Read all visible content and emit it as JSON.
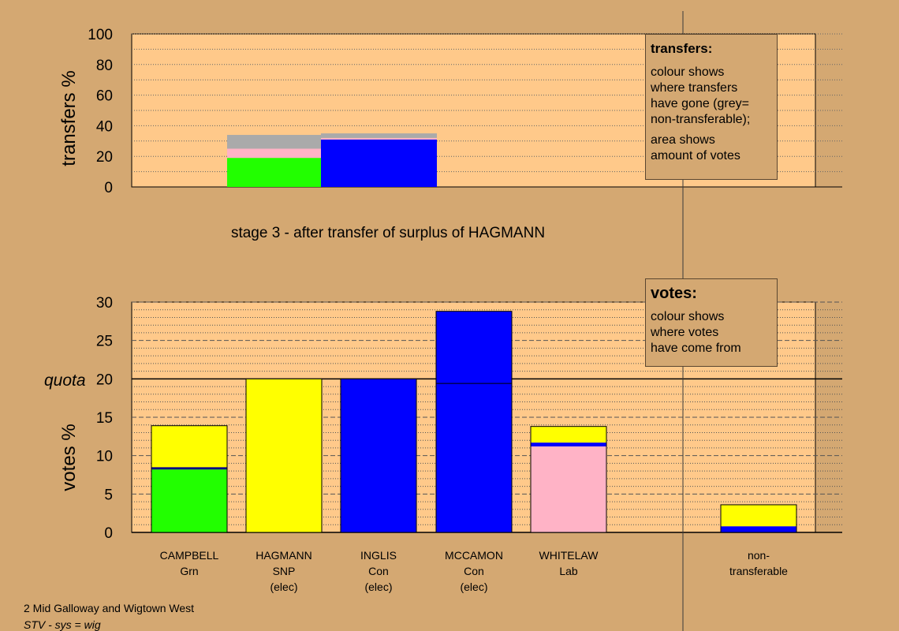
{
  "chart_data": [
    {
      "type": "bar",
      "ylabel": "transfers %",
      "ylim": [
        0,
        100
      ],
      "yticks": [
        0,
        20,
        40,
        60,
        80,
        100
      ],
      "grid": "dotted",
      "bars": [
        {
          "x_start": 1,
          "x_end": 2,
          "segments": [
            {
              "party": "Grn",
              "color": "#22ff00",
              "value": 19
            },
            {
              "party": "Lab",
              "color": "#ffb3c6",
              "value": 6
            },
            {
              "party": "non-transferable",
              "color": "#aaaaaa",
              "value": 9
            }
          ]
        },
        {
          "x_start": 2,
          "x_end": 3.2,
          "segments": [
            {
              "party": "Con",
              "color": "#0000ff",
              "value": 31
            },
            {
              "party": "Lab",
              "color": "#ffb3c6",
              "value": 1
            },
            {
              "party": "non-transferable",
              "color": "#aaaaaa",
              "value": 3
            }
          ]
        }
      ]
    },
    {
      "type": "bar",
      "ylabel": "votes %",
      "ylim": [
        0,
        30
      ],
      "yticks": [
        0,
        5,
        10,
        15,
        20,
        25,
        30
      ],
      "quota": 20,
      "quota_label": "quota",
      "grid": "dashed",
      "categories": [
        {
          "name": "CAMPBELL",
          "party": "Grn",
          "status": "",
          "segments": [
            {
              "color": "#22ff00",
              "value": 8.2
            },
            {
              "color": "#000080",
              "value": 0.3
            },
            {
              "color": "#ffff00",
              "value": 5.4
            }
          ]
        },
        {
          "name": "HAGMANN",
          "party": "SNP",
          "status": "(elec)",
          "segments": [
            {
              "color": "#ffff00",
              "value": 20
            }
          ]
        },
        {
          "name": "INGLIS",
          "party": "Con",
          "status": "(elec)",
          "segments": [
            {
              "color": "#0000ff",
              "value": 20
            }
          ]
        },
        {
          "name": "MCCAMON",
          "party": "Con",
          "status": "(elec)",
          "segments": [
            {
              "color": "#0000ff",
              "value": 28.8
            }
          ]
        },
        {
          "name": "WHITELAW",
          "party": "Lab",
          "status": "",
          "segments": [
            {
              "color": "#ffb3c6",
              "value": 11.2
            },
            {
              "color": "#0000ff",
              "value": 0.5
            },
            {
              "color": "#ffff00",
              "value": 2.1
            }
          ]
        },
        {
          "name": "non-",
          "party": "transferable",
          "status": "",
          "segments": [
            {
              "color": "#0000ff",
              "value": 0.8
            },
            {
              "color": "#ffff00",
              "value": 2.8
            }
          ]
        }
      ]
    }
  ],
  "stage_title": "stage 3 - after transfer of surplus of HAGMANN",
  "transfers_note": {
    "title": "transfers:",
    "lines": [
      "colour shows",
      "where transfers",
      "have gone (grey=",
      "non-transferable);"
    ],
    "lines2": [
      "area shows",
      "amount of votes"
    ]
  },
  "votes_note": {
    "title": "votes:",
    "lines": [
      "colour shows",
      "where votes",
      "have come from"
    ]
  },
  "footer": {
    "ward": "2 Mid Galloway and Wigtown West",
    "system": "STV - sys = wig"
  }
}
